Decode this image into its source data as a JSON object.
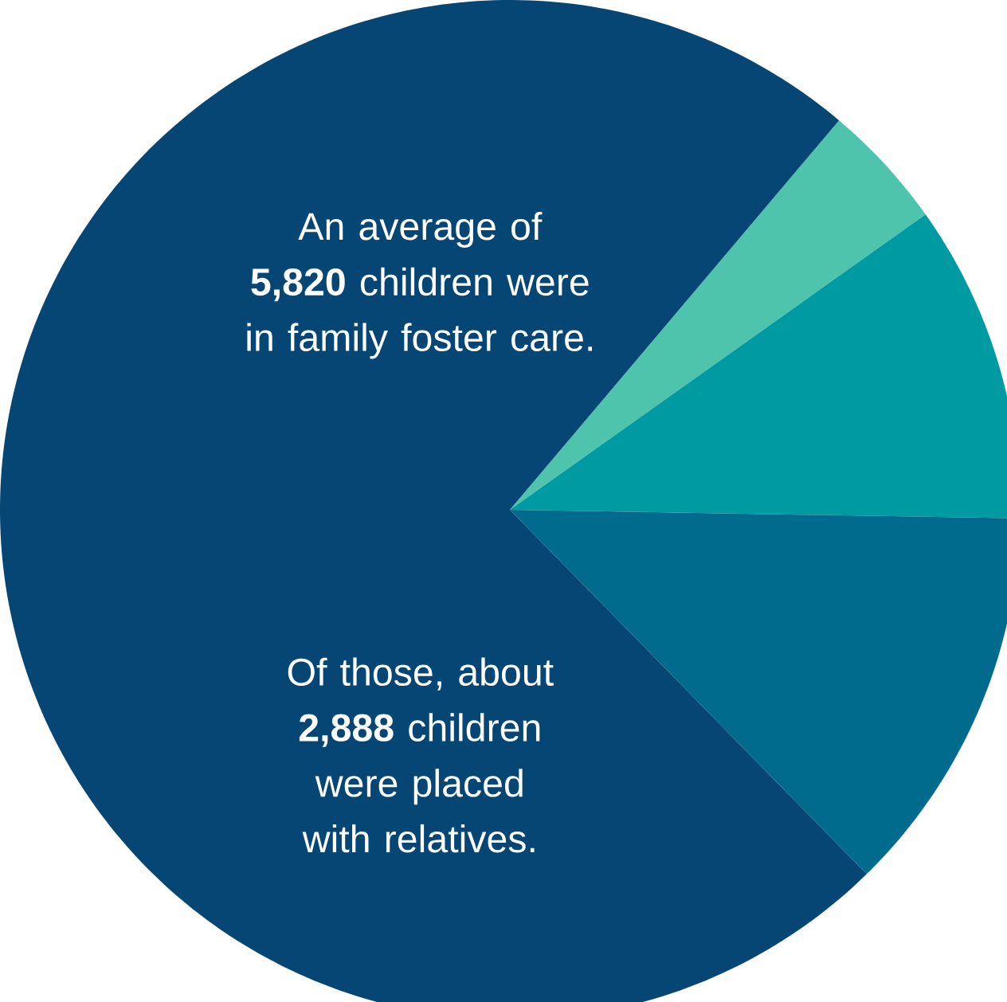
{
  "chart_data": {
    "type": "pie",
    "categories": [
      null,
      null,
      null,
      null
    ],
    "values": [
      4.0,
      10.1,
      12.4,
      73.5
    ],
    "colors": [
      "#4fc4ad",
      "#009aa2",
      "#006b8c",
      "#064675"
    ],
    "annotations": [
      "An average of **5,820** children were in family foster care.",
      "Of those, about **2,888** children were placed with relatives."
    ]
  }
}
